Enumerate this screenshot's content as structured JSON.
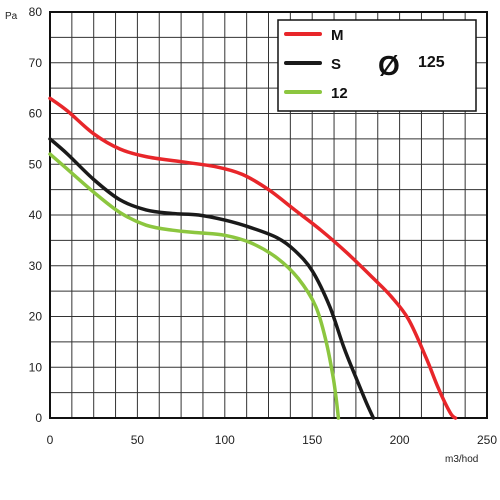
{
  "chart_data": {
    "type": "line",
    "xlabel": "m3/hod",
    "ylabel": "Pa",
    "xlim": [
      0,
      250
    ],
    "ylim": [
      0,
      80
    ],
    "x_ticks": [
      0,
      50,
      100,
      150,
      200,
      250
    ],
    "y_ticks": [
      0,
      10,
      20,
      30,
      40,
      50,
      60,
      70,
      80
    ],
    "grid": true,
    "legend_position": "top-right",
    "legend_extra": {
      "symbol": "Ø",
      "value": "125"
    },
    "series": [
      {
        "name": "M",
        "color": "#e8262a",
        "points": [
          [
            0,
            63
          ],
          [
            10,
            60.5
          ],
          [
            25,
            56
          ],
          [
            40,
            53
          ],
          [
            55,
            51.5
          ],
          [
            75,
            50.5
          ],
          [
            95,
            49.5
          ],
          [
            110,
            48
          ],
          [
            125,
            45
          ],
          [
            140,
            41
          ],
          [
            155,
            37
          ],
          [
            170,
            32.5
          ],
          [
            185,
            27.5
          ],
          [
            195,
            24
          ],
          [
            205,
            19.5
          ],
          [
            215,
            12
          ],
          [
            222,
            6
          ],
          [
            229,
            1
          ],
          [
            232,
            0
          ]
        ]
      },
      {
        "name": "S",
        "color": "#1a1a1a",
        "points": [
          [
            0,
            55
          ],
          [
            10,
            52
          ],
          [
            25,
            47
          ],
          [
            40,
            43
          ],
          [
            55,
            41
          ],
          [
            70,
            40.3
          ],
          [
            85,
            40
          ],
          [
            100,
            39
          ],
          [
            115,
            37.5
          ],
          [
            130,
            35.5
          ],
          [
            140,
            33
          ],
          [
            150,
            29
          ],
          [
            160,
            22
          ],
          [
            168,
            14
          ],
          [
            175,
            8
          ],
          [
            181,
            3
          ],
          [
            185,
            0
          ]
        ]
      },
      {
        "name": "12",
        "color": "#8cc63f",
        "points": [
          [
            0,
            52
          ],
          [
            10,
            49
          ],
          [
            25,
            44.5
          ],
          [
            40,
            40.5
          ],
          [
            55,
            38
          ],
          [
            70,
            37
          ],
          [
            85,
            36.5
          ],
          [
            100,
            36
          ],
          [
            115,
            34.5
          ],
          [
            130,
            31.5
          ],
          [
            142,
            27.5
          ],
          [
            152,
            22
          ],
          [
            158,
            15
          ],
          [
            162,
            8
          ],
          [
            164,
            3
          ],
          [
            165,
            0
          ]
        ]
      }
    ]
  }
}
